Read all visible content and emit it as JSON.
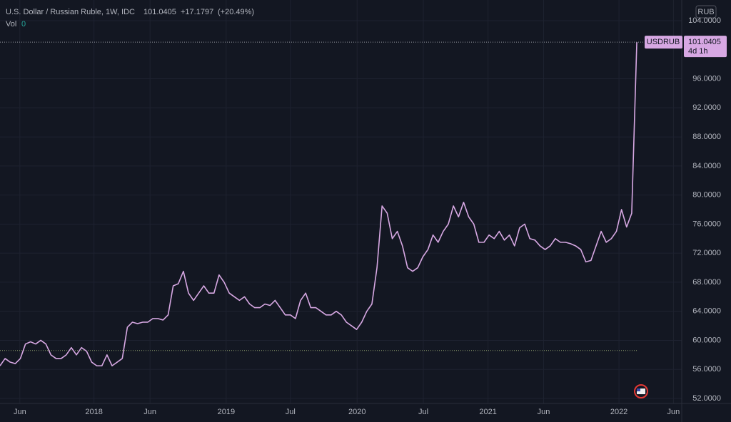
{
  "header": {
    "symbol": "U.S. Dollar / Russian Ruble, 1W, IDC",
    "change": "+17.1797",
    "change_pct": "(+20.49%)",
    "vol_label": "Vol",
    "vol_value": "0",
    "currency": "RUB",
    "countdown": "4d 1h"
  },
  "chart_data": {
    "type": "line",
    "series": [
      {
        "name": "USDRUB",
        "color": "#d7a8e3",
        "values": [
          56.5,
          57.5,
          57,
          56.8,
          57.5,
          59.5,
          59.8,
          59.5,
          60,
          59.5,
          58,
          57.5,
          57.5,
          58,
          59,
          58,
          59,
          58.5,
          57,
          56.5,
          56.5,
          58,
          56.5,
          57,
          57.5,
          61.8,
          62.5,
          62.3,
          62.5,
          62.5,
          63,
          63,
          62.8,
          63.5,
          67.5,
          67.8,
          69.5,
          66.5,
          65.5,
          66.5,
          67.5,
          66.5,
          66.5,
          69,
          68,
          66.5,
          66,
          65.5,
          66,
          65,
          64.5,
          64.5,
          65,
          64.8,
          65.5,
          64.5,
          63.5,
          63.5,
          63,
          65.5,
          66.5,
          64.5,
          64.5,
          64,
          63.5,
          63.5,
          64,
          63.5,
          62.5,
          62,
          61.5,
          62.5,
          64,
          65,
          70,
          78.5,
          77.5,
          74,
          75,
          73,
          70,
          69.5,
          70,
          71.5,
          72.5,
          74.5,
          73.5,
          75,
          76,
          78.5,
          77,
          79,
          77,
          76,
          73.5,
          73.5,
          74.5,
          74,
          75,
          73.8,
          74.5,
          73,
          75.5,
          76,
          74,
          73.8,
          73,
          72.5,
          73,
          74,
          73.5,
          73.5,
          73.3,
          73,
          72.5,
          70.8,
          71,
          73,
          75,
          73.5,
          74,
          75,
          78,
          75.6,
          77.5,
          101.0405
        ]
      }
    ],
    "reference_line": 58.6,
    "xlim": [
      0,
      133.4
    ],
    "xticks": [
      {
        "value": 3.9,
        "label": "Jun"
      },
      {
        "value": 18.45,
        "label": "2018"
      },
      {
        "value": 29.45,
        "label": "Jun"
      },
      {
        "value": 44.4,
        "label": "2019"
      },
      {
        "value": 57,
        "label": "Jul"
      },
      {
        "value": 70.1,
        "label": "2020"
      },
      {
        "value": 83.1,
        "label": "Jul"
      },
      {
        "value": 95.8,
        "label": "2021"
      },
      {
        "value": 106.7,
        "label": "Jun"
      },
      {
        "value": 121.5,
        "label": "2022"
      },
      {
        "value": 132.2,
        "label": "Jun"
      }
    ],
    "ylim": [
      52,
      104
    ],
    "yticks": [
      {
        "value": 52,
        "label": "52.0000"
      },
      {
        "value": 56,
        "label": "56.0000"
      },
      {
        "value": 60,
        "label": "60.0000"
      },
      {
        "value": 64,
        "label": "64.0000"
      },
      {
        "value": 68,
        "label": "68.0000"
      },
      {
        "value": 72,
        "label": "72.0000"
      },
      {
        "value": 76,
        "label": "76.0000"
      },
      {
        "value": 80,
        "label": "80.0000"
      },
      {
        "value": 84,
        "label": "84.0000"
      },
      {
        "value": 88,
        "label": "88.0000"
      },
      {
        "value": 92,
        "label": "92.0000"
      },
      {
        "value": 96,
        "label": "96.0000"
      },
      {
        "value": 104,
        "label": "104.0000"
      }
    ],
    "grid": true
  }
}
